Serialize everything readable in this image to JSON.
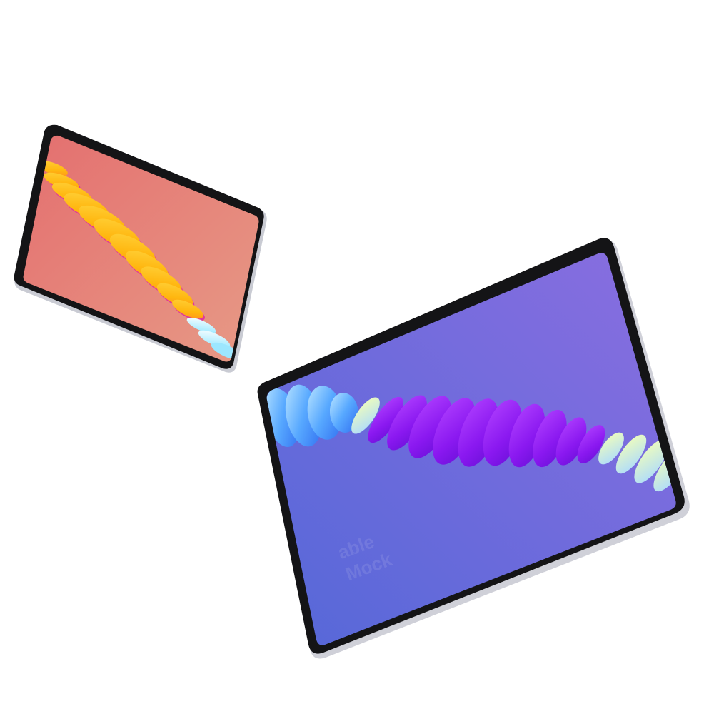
{
  "scene": {
    "background": "#ffffff",
    "devices": [
      {
        "name": "tablet-small",
        "frame_color": "#141416",
        "edge_color": "#c9cbd3",
        "screen_gradient": [
          "#e46f6f",
          "#e79a86"
        ],
        "shape_colors": [
          "#ffc21a",
          "#ff8a1f",
          "#e0389a",
          "#9ce7ff"
        ]
      },
      {
        "name": "tablet-large",
        "frame_color": "#141416",
        "edge_color": "#cfd0d8",
        "screen_gradient": [
          "#5568d8",
          "#8a6ee0"
        ],
        "shape_colors": [
          "#8a18f0",
          "#b040ff",
          "#3c8cff",
          "#d9f59a"
        ]
      }
    ],
    "watermark": {
      "line1": "able",
      "line2": "Mock",
      "color": "#ffffff"
    }
  }
}
